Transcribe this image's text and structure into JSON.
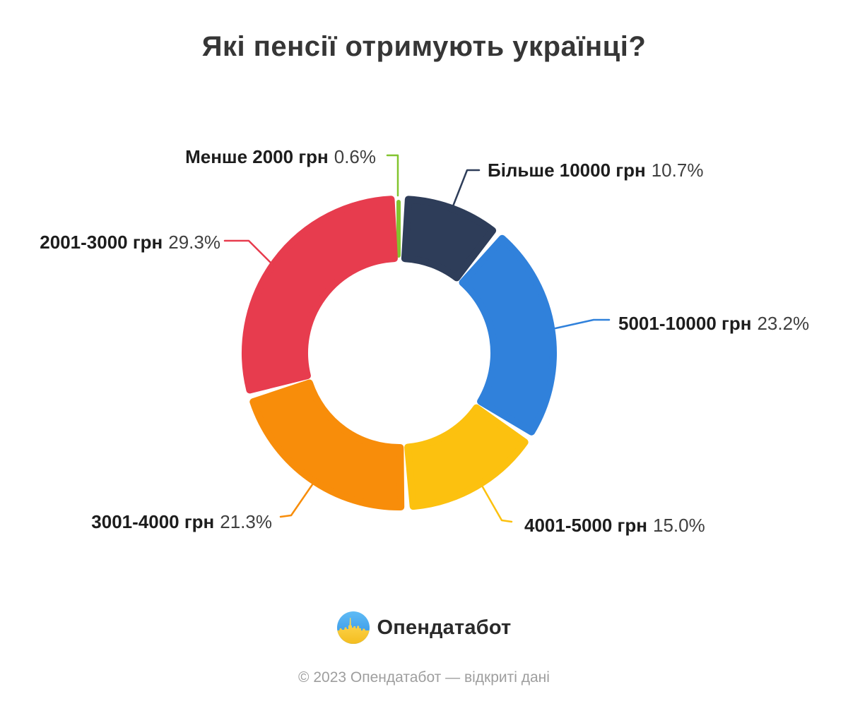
{
  "title": "Які пенсії отримують українці?",
  "chart_data": {
    "type": "pie",
    "variant": "donut",
    "title": "Які пенсії отримують українці?",
    "unit": "%",
    "start": "top",
    "direction": "clockwise",
    "legend_position": "outside-callouts",
    "segments": [
      {
        "label": "Менше 2000 грн",
        "pct_label": "0.6%",
        "value": 0.6,
        "color": "#82C42F"
      },
      {
        "label": "Більше 10000 грн",
        "pct_label": "10.7%",
        "value": 10.7,
        "color": "#2E3D59"
      },
      {
        "label": "5001-10000 грн",
        "pct_label": "23.2%",
        "value": 23.2,
        "color": "#3081DB"
      },
      {
        "label": "4001-5000 грн",
        "pct_label": "15.0%",
        "value": 15.0,
        "color": "#FCC10F"
      },
      {
        "label": "3001-4000 грн",
        "pct_label": "21.3%",
        "value": 21.3,
        "color": "#F88D0A"
      },
      {
        "label": "2001-3000 грн",
        "pct_label": "29.3%",
        "value": 29.3,
        "color": "#E73C4E"
      }
    ]
  },
  "logo": {
    "name": "Опендатабот",
    "flag_blue": "#3E9CEC",
    "flag_yellow": "#FBCB2E"
  },
  "footer": {
    "text": "© 2023 Опендатабот — відкриті дані"
  }
}
